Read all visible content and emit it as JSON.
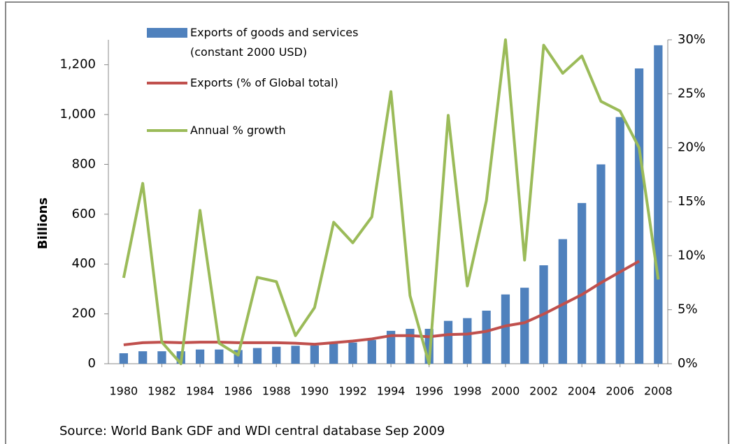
{
  "chart_data": {
    "type": "bar_line",
    "y_label": "Billions",
    "source": "Source: World Bank GDF and WDI central database Sep 2009",
    "x": [
      1980,
      1981,
      1982,
      1983,
      1984,
      1985,
      1986,
      1987,
      1988,
      1989,
      1990,
      1991,
      1992,
      1993,
      1994,
      1995,
      1996,
      1997,
      1998,
      1999,
      2000,
      2001,
      2002,
      2003,
      2004,
      2005,
      2006,
      2007,
      2008
    ],
    "xlim": [
      1979.2,
      2008.5
    ],
    "xticks": [
      1980,
      1982,
      1984,
      1986,
      1988,
      1990,
      1992,
      1994,
      1996,
      1998,
      2000,
      2002,
      2004,
      2006,
      2008
    ],
    "ylim": [
      0,
      1300
    ],
    "yticks": [
      0,
      200,
      400,
      600,
      800,
      {
        "value": 1000,
        "label": "1,000"
      },
      {
        "value": 1200,
        "label": "1,200"
      }
    ],
    "y2lim": [
      0,
      30
    ],
    "y2ticks": [
      {
        "value": 0,
        "label": "0%"
      },
      {
        "value": 5,
        "label": "5%"
      },
      {
        "value": 10,
        "label": "10%"
      },
      {
        "value": 15,
        "label": "15%"
      },
      {
        "value": 20,
        "label": "20%"
      },
      {
        "value": 25,
        "label": "25%"
      },
      {
        "value": 30,
        "label": "30%"
      }
    ],
    "series": [
      {
        "name": "Exports of goods and services (constant 2000 USD)",
        "kind": "bar",
        "color": "#4f81bd",
        "values": [
          42,
          50,
          50,
          50,
          57,
          57,
          55,
          63,
          68,
          72,
          73,
          80,
          85,
          95,
          132,
          140,
          140,
          172,
          183,
          213,
          278,
          305,
          395,
          500,
          645,
          800,
          990,
          1185,
          1278
        ]
      },
      {
        "name": "Exports (% of Global total)",
        "kind": "line",
        "axis": "y2",
        "color": "#c0504d",
        "values": [
          1.75,
          1.95,
          2.0,
          1.95,
          2.0,
          2.0,
          1.95,
          1.95,
          1.95,
          1.9,
          1.8,
          1.95,
          2.1,
          2.3,
          2.6,
          2.6,
          2.5,
          2.7,
          2.75,
          3.0,
          3.5,
          3.8,
          4.6,
          5.5,
          6.4,
          7.5,
          8.5,
          9.5,
          null
        ]
      },
      {
        "name": "Annual % growth",
        "kind": "line",
        "axis": "y2",
        "color": "#9bbb59",
        "values": [
          7.95,
          16.7,
          2.0,
          0,
          14.2,
          1.9,
          0.8,
          8.0,
          7.6,
          2.6,
          5.2,
          13.1,
          11.2,
          13.6,
          25.2,
          6.3,
          0,
          23.0,
          7.2,
          15.1,
          30,
          9.6,
          29.5,
          26.9,
          28.5,
          24.3,
          23.4,
          20.0,
          7.8
        ]
      }
    ]
  }
}
